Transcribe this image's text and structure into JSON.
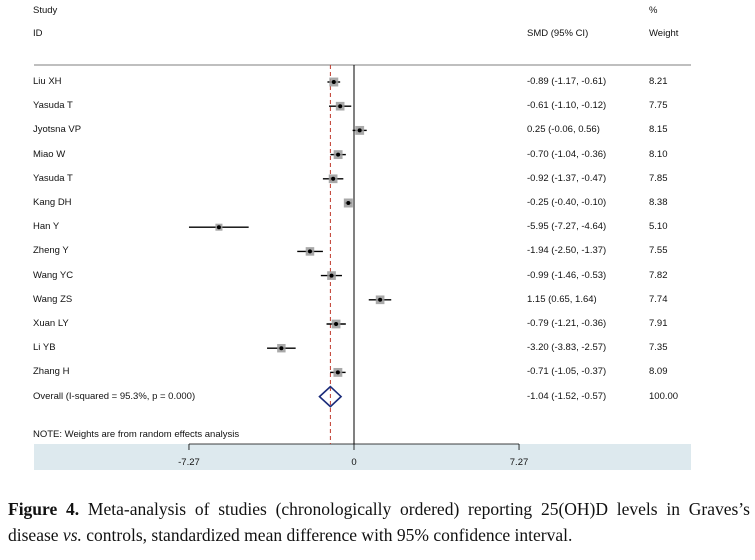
{
  "chart_data": {
    "type": "forest",
    "header": {
      "study_label": "Study",
      "id_label": "ID",
      "effect_label": "SMD (95% CI)",
      "weight_label_top": "%",
      "weight_label": "Weight"
    },
    "studies": [
      {
        "id": "Liu XH",
        "smd": -0.89,
        "lo": -1.17,
        "hi": -0.61,
        "ci_text": "-0.89 (-1.17, -0.61)",
        "weight": 8.21,
        "weight_text": "8.21"
      },
      {
        "id": "Yasuda T",
        "smd": -0.61,
        "lo": -1.1,
        "hi": -0.12,
        "ci_text": "-0.61 (-1.10, -0.12)",
        "weight": 7.75,
        "weight_text": "7.75"
      },
      {
        "id": "Jyotsna VP",
        "smd": 0.25,
        "lo": -0.06,
        "hi": 0.56,
        "ci_text": "0.25 (-0.06, 0.56)",
        "weight": 8.15,
        "weight_text": "8.15"
      },
      {
        "id": "Miao W",
        "smd": -0.7,
        "lo": -1.04,
        "hi": -0.36,
        "ci_text": "-0.70 (-1.04, -0.36)",
        "weight": 8.1,
        "weight_text": "8.10"
      },
      {
        "id": "Yasuda T",
        "smd": -0.92,
        "lo": -1.37,
        "hi": -0.47,
        "ci_text": "-0.92 (-1.37, -0.47)",
        "weight": 7.85,
        "weight_text": "7.85"
      },
      {
        "id": "Kang DH",
        "smd": -0.25,
        "lo": -0.4,
        "hi": -0.1,
        "ci_text": "-0.25 (-0.40, -0.10)",
        "weight": 8.38,
        "weight_text": "8.38"
      },
      {
        "id": "Han Y",
        "smd": -5.95,
        "lo": -7.27,
        "hi": -4.64,
        "ci_text": "-5.95 (-7.27, -4.64)",
        "weight": 5.1,
        "weight_text": "5.10"
      },
      {
        "id": "Zheng Y",
        "smd": -1.94,
        "lo": -2.5,
        "hi": -1.37,
        "ci_text": "-1.94 (-2.50, -1.37)",
        "weight": 7.55,
        "weight_text": "7.55"
      },
      {
        "id": "Wang YC",
        "smd": -0.99,
        "lo": -1.46,
        "hi": -0.53,
        "ci_text": "-0.99 (-1.46, -0.53)",
        "weight": 7.82,
        "weight_text": "7.82"
      },
      {
        "id": "Wang ZS",
        "smd": 1.15,
        "lo": 0.65,
        "hi": 1.64,
        "ci_text": "1.15 (0.65, 1.64)",
        "weight": 7.74,
        "weight_text": "7.74"
      },
      {
        "id": "Xuan LY",
        "smd": -0.79,
        "lo": -1.21,
        "hi": -0.36,
        "ci_text": "-0.79 (-1.21, -0.36)",
        "weight": 7.91,
        "weight_text": "7.91"
      },
      {
        "id": "Li YB",
        "smd": -3.2,
        "lo": -3.83,
        "hi": -2.57,
        "ci_text": "-3.20 (-3.83, -2.57)",
        "weight": 7.35,
        "weight_text": "7.35"
      },
      {
        "id": "Zhang H",
        "smd": -0.71,
        "lo": -1.05,
        "hi": -0.37,
        "ci_text": "-0.71 (-1.05, -0.37)",
        "weight": 8.09,
        "weight_text": "8.09"
      }
    ],
    "overall": {
      "label": "Overall  (I-squared = 95.3%, p = 0.000)",
      "smd": -1.04,
      "lo": -1.52,
      "hi": -0.57,
      "ci_text": "-1.04 (-1.52, -0.57)",
      "weight_text": "100.00"
    },
    "note": "NOTE: Weights are from random effects analysis",
    "xlim": [
      -7.27,
      7.27
    ],
    "xticks": [
      -7.27,
      0,
      7.27
    ],
    "xtick_labels": [
      "-7.27",
      "0",
      "7.27"
    ],
    "colors": {
      "ci_line": "#000000",
      "weight_box": "#9a9a9a",
      "point": "#000000",
      "overall_line": "#c0392b",
      "diamond": "#1a2b7a",
      "axis_band": "#dde9ee"
    }
  },
  "caption": {
    "label": "Figure 4.",
    "text": " Meta-analysis of studies (chronologically ordered) reporting 25(OH)D levels in Graves’s disease ",
    "italic": "vs.",
    "text_end": " controls, standardized mean difference with 95% confidence interval."
  }
}
